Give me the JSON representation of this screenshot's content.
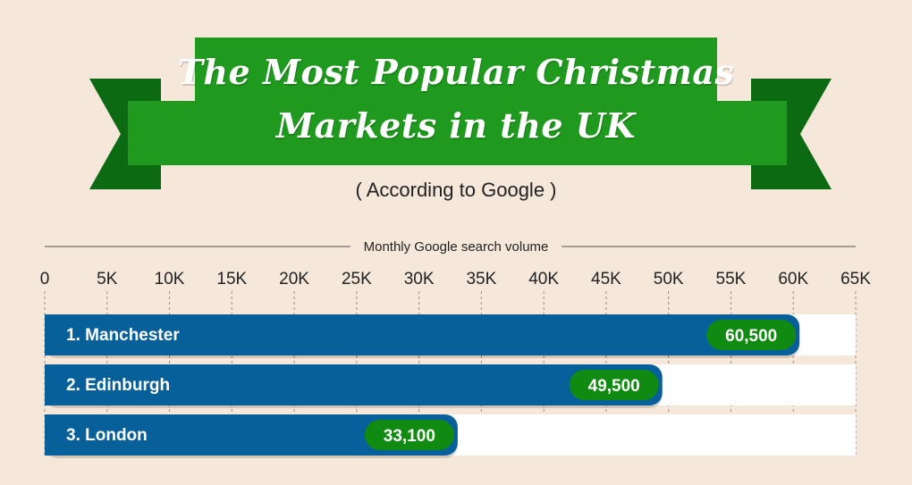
{
  "header": {
    "title_line1": "The Most Popular Christmas",
    "title_line2": "Markets in the UK",
    "subtitle": "( According to Google )"
  },
  "colors": {
    "background": "#f5e8da",
    "banner_green": "#1f9a1f",
    "banner_dark_green": "#0b6a12",
    "bar_blue": "#08609a",
    "label_green": "#108a10",
    "track": "#ffffff"
  },
  "chart_data": {
    "type": "bar",
    "orientation": "horizontal",
    "axis_title": "Monthly Google search volume",
    "xlim": [
      0,
      65000
    ],
    "ticks": [
      0,
      5000,
      10000,
      15000,
      20000,
      25000,
      30000,
      35000,
      40000,
      45000,
      50000,
      55000,
      60000,
      65000
    ],
    "tick_labels": [
      "0",
      "5K",
      "10K",
      "15K",
      "20K",
      "25K",
      "30K",
      "35K",
      "40K",
      "45K",
      "50K",
      "55K",
      "60K",
      "65K"
    ],
    "grid": true,
    "categories": [
      "1.  Manchester",
      "2.  Edinburgh",
      "3.  London"
    ],
    "values": [
      60500,
      49500,
      33100
    ],
    "value_labels": [
      "60,500",
      "49,500",
      "33,100"
    ]
  }
}
